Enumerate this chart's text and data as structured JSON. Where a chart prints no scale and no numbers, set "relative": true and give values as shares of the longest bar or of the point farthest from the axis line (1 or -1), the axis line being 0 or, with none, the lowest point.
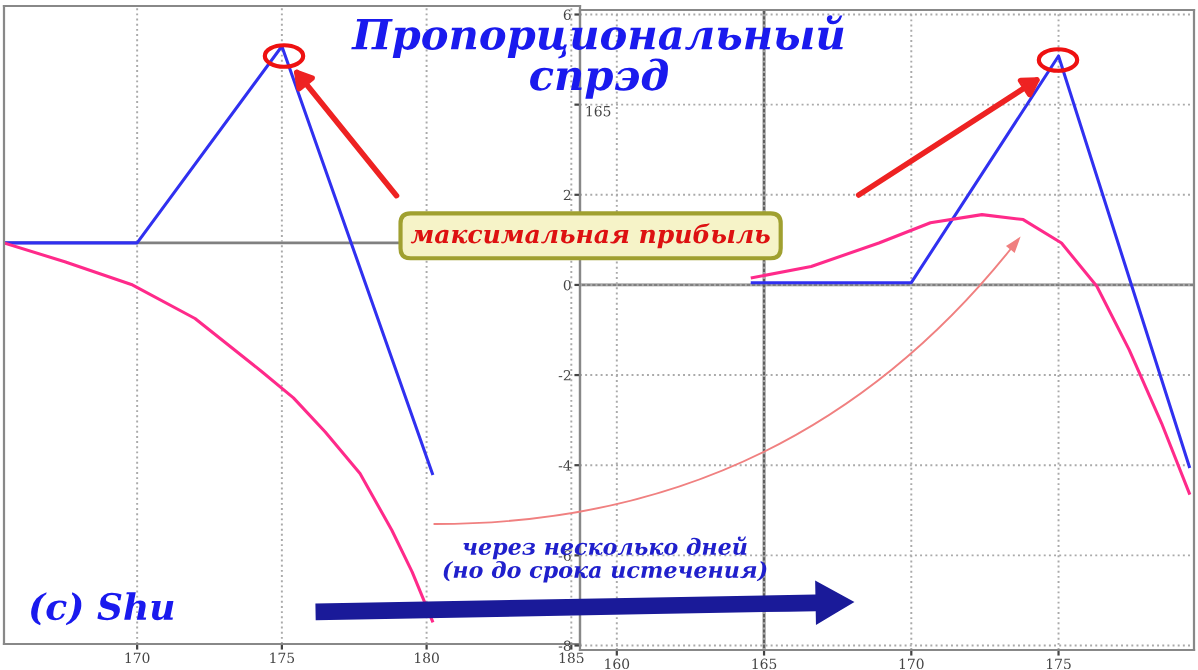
{
  "chart_data": [
    {
      "type": "line",
      "title": "Пропорциональный\nспрэд",
      "relative": true,
      "grid": "x",
      "marker": "none",
      "line_style": "solid",
      "legend": false,
      "xlim": [
        165.4,
        185.3
      ],
      "xticks": [
        170,
        175,
        180,
        185
      ],
      "ref_lines": [
        {
          "axis": "y",
          "value": 0,
          "color": "#808080"
        }
      ],
      "annotations": [
        "максимальная прибыль",
        "через несколько дней\n(но до срока истечения)",
        "(c) Shu"
      ],
      "series": [
        {
          "color": "#3030f0",
          "x": [
            165.4,
            170,
            175,
            180.2
          ],
          "values": [
            0,
            0,
            0.52,
            -0.61
          ]
        },
        {
          "color": "#ff2a8a",
          "x": [
            165.4,
            167.5,
            169.8,
            172.0,
            174.3,
            175.4,
            176.5,
            177.7,
            178.8,
            179.5,
            180.2
          ],
          "values": [
            0,
            -0.05,
            -0.11,
            -0.2,
            -0.34,
            -0.41,
            -0.5,
            -0.61,
            -0.76,
            -0.87,
            -1.0
          ]
        }
      ]
    },
    {
      "type": "line",
      "grid": true,
      "marker": "none",
      "line_style": "solid",
      "legend": false,
      "xlim": [
        158.75,
        179.6
      ],
      "xticks": [
        160,
        165,
        170,
        175
      ],
      "ylim": [
        -8.1,
        6.1
      ],
      "yticks": [
        -8,
        -6,
        -4,
        -2,
        0,
        2,
        {
          "value": 4,
          "label": null
        },
        6
      ],
      "annotations": [
        "165"
      ],
      "ref_lines": [
        {
          "axis": "y",
          "value": 0,
          "color": "#808080"
        },
        {
          "axis": "x",
          "value": 165,
          "color": "#606060"
        }
      ],
      "series": [
        {
          "color": "#3030f0",
          "x": [
            164.6,
            170,
            175,
            179.44
          ],
          "values": [
            0.05,
            0.05,
            5.08,
            -4.03
          ]
        },
        {
          "color": "#ff2a8a",
          "x": [
            164.6,
            166.6,
            168.9,
            170.65,
            172.4,
            173.8,
            175.1,
            176.3,
            177.4,
            178.5,
            179.44
          ],
          "values": [
            0.16,
            0.41,
            0.93,
            1.38,
            1.56,
            1.45,
            0.93,
            -0.03,
            -1.44,
            -3.07,
            -4.62
          ]
        }
      ]
    }
  ]
}
